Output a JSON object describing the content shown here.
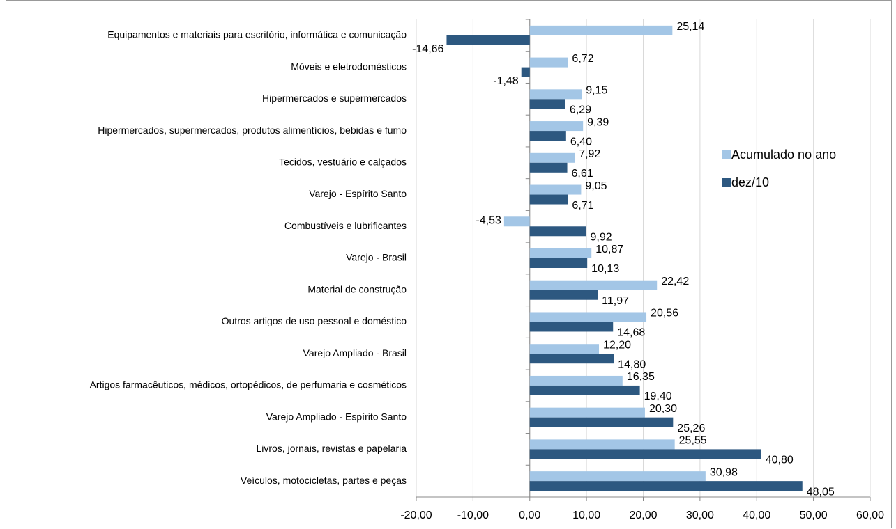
{
  "chart_data": {
    "type": "hbar",
    "categories": [
      "Equipamentos e materiais para escritório, informática e comunicação",
      "Móveis e eletrodomésticos",
      "Hipermercados e supermercados",
      "Hipermercados, supermercados, produtos alimentícios, bebidas e fumo",
      "Tecidos, vestuário e calçados",
      "Varejo - Espírito Santo",
      "Combustíveis e lubrificantes",
      "Varejo - Brasil",
      "Material de construção",
      "Outros artigos de uso pessoal e doméstico",
      "Varejo Ampliado - Brasil",
      "Artigos farmacêuticos, médicos, ortopédicos, de perfumaria e cosméticos",
      "Varejo Ampliado - Espírito Santo",
      "Livros, jornais, revistas e papelaria",
      "Veículos, motocicletas, partes e peças"
    ],
    "series": [
      {
        "name": "Acumulado no ano",
        "color": "#a3c6e6",
        "values": [
          25.14,
          6.72,
          9.15,
          9.39,
          7.92,
          9.05,
          -4.53,
          10.87,
          22.42,
          20.56,
          12.2,
          16.35,
          20.3,
          25.55,
          30.98
        ],
        "value_labels": [
          "25,14",
          "6,72",
          "9,15",
          "9,39",
          "7,92",
          "9,05",
          "-4,53",
          "10,87",
          "22,42",
          "20,56",
          "12,20",
          "16,35",
          "20,30",
          "25,55",
          "30,98"
        ]
      },
      {
        "name": "dez/10",
        "color": "#2d5880",
        "values": [
          -14.66,
          -1.48,
          6.29,
          6.4,
          6.61,
          6.71,
          9.92,
          10.13,
          11.97,
          14.68,
          14.8,
          19.4,
          25.26,
          40.8,
          48.05
        ],
        "value_labels": [
          "-14,66",
          "-1,48",
          "6,29",
          "6,40",
          "6,61",
          "6,71",
          "9,92",
          "10,13",
          "11,97",
          "14,68",
          "14,80",
          "19,40",
          "25,26",
          "40,80",
          "48,05"
        ]
      }
    ],
    "xlim": [
      -20,
      60
    ],
    "xticks": [
      {
        "value": -20,
        "label": "-20,00"
      },
      {
        "value": -10,
        "label": "-10,00"
      },
      {
        "value": 0,
        "label": "0,00"
      },
      {
        "value": 10,
        "label": "10,00"
      },
      {
        "value": 20,
        "label": "20,00"
      },
      {
        "value": 30,
        "label": "30,00"
      },
      {
        "value": 40,
        "label": "40,00"
      },
      {
        "value": 50,
        "label": "50,00"
      },
      {
        "value": 60,
        "label": "60,00"
      }
    ],
    "grid": true,
    "legend": "right"
  }
}
